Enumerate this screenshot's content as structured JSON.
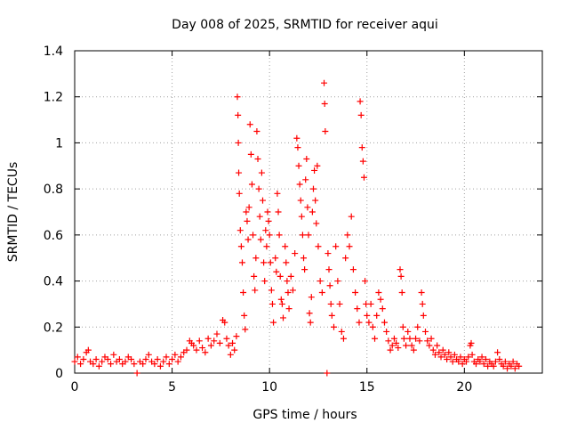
{
  "chart_data": {
    "type": "scatter",
    "title": "Day 008 of 2025, SRMTID for receiver aqui",
    "xlabel": "GPS time / hours",
    "ylabel": "SRMTID / TECUs",
    "xlim": [
      0,
      24
    ],
    "ylim": [
      0,
      1.4
    ],
    "x_ticks": [
      0,
      5,
      10,
      15,
      20
    ],
    "x_tick_labels": [
      "0",
      "5",
      "10",
      "15",
      "20"
    ],
    "y_ticks": [
      0,
      0.2,
      0.4,
      0.6,
      0.8,
      1.0,
      1.2,
      1.4
    ],
    "y_tick_labels": [
      "0",
      "0.2",
      "0.4",
      "0.6",
      "0.8",
      "1",
      "1.2",
      "1.4"
    ],
    "grid": true,
    "marker": "+",
    "colors": {
      "series": "#ff0000",
      "grid": "#a0a0a0",
      "axis": "#000000"
    },
    "series": [
      {
        "name": "SRMTID",
        "points": [
          [
            0.0,
            0.05
          ],
          [
            0.15,
            0.07
          ],
          [
            0.3,
            0.04
          ],
          [
            0.45,
            0.06
          ],
          [
            0.6,
            0.09
          ],
          [
            0.7,
            0.1
          ],
          [
            0.8,
            0.05
          ],
          [
            0.95,
            0.04
          ],
          [
            1.1,
            0.06
          ],
          [
            1.25,
            0.03
          ],
          [
            1.4,
            0.05
          ],
          [
            1.55,
            0.07
          ],
          [
            1.7,
            0.06
          ],
          [
            1.85,
            0.04
          ],
          [
            2.0,
            0.08
          ],
          [
            2.15,
            0.05
          ],
          [
            2.3,
            0.06
          ],
          [
            2.45,
            0.04
          ],
          [
            2.6,
            0.05
          ],
          [
            2.75,
            0.07
          ],
          [
            2.9,
            0.06
          ],
          [
            3.05,
            0.04
          ],
          [
            3.2,
            0.0
          ],
          [
            3.35,
            0.05
          ],
          [
            3.5,
            0.04
          ],
          [
            3.65,
            0.06
          ],
          [
            3.8,
            0.08
          ],
          [
            3.95,
            0.05
          ],
          [
            4.1,
            0.04
          ],
          [
            4.25,
            0.06
          ],
          [
            4.4,
            0.03
          ],
          [
            4.55,
            0.05
          ],
          [
            4.7,
            0.07
          ],
          [
            4.85,
            0.04
          ],
          [
            5.0,
            0.06
          ],
          [
            5.15,
            0.08
          ],
          [
            5.3,
            0.05
          ],
          [
            5.45,
            0.07
          ],
          [
            5.6,
            0.09
          ],
          [
            5.75,
            0.1
          ],
          [
            5.9,
            0.14
          ],
          [
            6.0,
            0.13
          ],
          [
            6.1,
            0.12
          ],
          [
            6.25,
            0.1
          ],
          [
            6.4,
            0.14
          ],
          [
            6.55,
            0.11
          ],
          [
            6.7,
            0.09
          ],
          [
            6.85,
            0.15
          ],
          [
            7.0,
            0.12
          ],
          [
            7.15,
            0.14
          ],
          [
            7.3,
            0.17
          ],
          [
            7.45,
            0.13
          ],
          [
            7.6,
            0.23
          ],
          [
            7.7,
            0.22
          ],
          [
            7.8,
            0.15
          ],
          [
            7.9,
            0.12
          ],
          [
            8.0,
            0.08
          ],
          [
            8.1,
            0.13
          ],
          [
            8.2,
            0.1
          ],
          [
            8.3,
            0.16
          ],
          [
            8.35,
            1.2
          ],
          [
            8.38,
            1.12
          ],
          [
            8.4,
            1.0
          ],
          [
            8.42,
            0.87
          ],
          [
            8.45,
            0.78
          ],
          [
            8.5,
            0.62
          ],
          [
            8.55,
            0.55
          ],
          [
            8.6,
            0.48
          ],
          [
            8.65,
            0.35
          ],
          [
            8.7,
            0.25
          ],
          [
            8.75,
            0.19
          ],
          [
            8.8,
            0.7
          ],
          [
            8.85,
            0.66
          ],
          [
            8.9,
            0.58
          ],
          [
            8.95,
            0.72
          ],
          [
            9.0,
            1.08
          ],
          [
            9.05,
            0.95
          ],
          [
            9.1,
            0.82
          ],
          [
            9.15,
            0.6
          ],
          [
            9.2,
            0.42
          ],
          [
            9.25,
            0.36
          ],
          [
            9.3,
            0.5
          ],
          [
            9.35,
            1.05
          ],
          [
            9.4,
            0.93
          ],
          [
            9.45,
            0.8
          ],
          [
            9.5,
            0.68
          ],
          [
            9.55,
            0.58
          ],
          [
            9.6,
            0.87
          ],
          [
            9.65,
            0.75
          ],
          [
            9.7,
            0.48
          ],
          [
            9.75,
            0.4
          ],
          [
            9.8,
            0.62
          ],
          [
            9.85,
            0.55
          ],
          [
            9.9,
            0.7
          ],
          [
            9.95,
            0.66
          ],
          [
            10.0,
            0.6
          ],
          [
            10.05,
            0.48
          ],
          [
            10.1,
            0.36
          ],
          [
            10.15,
            0.3
          ],
          [
            10.2,
            0.22
          ],
          [
            10.3,
            0.5
          ],
          [
            10.35,
            0.44
          ],
          [
            10.4,
            0.78
          ],
          [
            10.45,
            0.7
          ],
          [
            10.5,
            0.6
          ],
          [
            10.55,
            0.42
          ],
          [
            10.6,
            0.32
          ],
          [
            10.65,
            0.3
          ],
          [
            10.7,
            0.24
          ],
          [
            10.8,
            0.55
          ],
          [
            10.85,
            0.48
          ],
          [
            10.9,
            0.4
          ],
          [
            10.95,
            0.35
          ],
          [
            11.0,
            0.28
          ],
          [
            11.1,
            0.42
          ],
          [
            11.2,
            0.36
          ],
          [
            11.3,
            0.52
          ],
          [
            11.4,
            1.02
          ],
          [
            11.45,
            0.98
          ],
          [
            11.5,
            0.9
          ],
          [
            11.55,
            0.82
          ],
          [
            11.6,
            0.75
          ],
          [
            11.65,
            0.68
          ],
          [
            11.7,
            0.6
          ],
          [
            11.75,
            0.5
          ],
          [
            11.8,
            0.45
          ],
          [
            11.85,
            0.84
          ],
          [
            11.9,
            0.93
          ],
          [
            11.95,
            0.72
          ],
          [
            12.0,
            0.6
          ],
          [
            12.05,
            0.26
          ],
          [
            12.1,
            0.22
          ],
          [
            12.15,
            0.33
          ],
          [
            12.2,
            0.7
          ],
          [
            12.25,
            0.8
          ],
          [
            12.3,
            0.88
          ],
          [
            12.35,
            0.75
          ],
          [
            12.4,
            0.65
          ],
          [
            12.45,
            0.9
          ],
          [
            12.5,
            0.55
          ],
          [
            12.6,
            0.4
          ],
          [
            12.7,
            0.35
          ],
          [
            12.8,
            1.26
          ],
          [
            12.83,
            1.17
          ],
          [
            12.86,
            1.05
          ],
          [
            12.95,
            0.0
          ],
          [
            13.0,
            0.52
          ],
          [
            13.05,
            0.45
          ],
          [
            13.1,
            0.38
          ],
          [
            13.15,
            0.3
          ],
          [
            13.2,
            0.25
          ],
          [
            13.3,
            0.2
          ],
          [
            13.4,
            0.55
          ],
          [
            13.5,
            0.4
          ],
          [
            13.6,
            0.3
          ],
          [
            13.7,
            0.18
          ],
          [
            13.8,
            0.15
          ],
          [
            13.9,
            0.5
          ],
          [
            14.0,
            0.6
          ],
          [
            14.1,
            0.55
          ],
          [
            14.2,
            0.68
          ],
          [
            14.3,
            0.45
          ],
          [
            14.4,
            0.35
          ],
          [
            14.5,
            0.28
          ],
          [
            14.6,
            0.22
          ],
          [
            14.65,
            1.18
          ],
          [
            14.7,
            1.12
          ],
          [
            14.75,
            0.98
          ],
          [
            14.8,
            0.92
          ],
          [
            14.85,
            0.85
          ],
          [
            14.9,
            0.4
          ],
          [
            14.95,
            0.3
          ],
          [
            15.0,
            0.25
          ],
          [
            15.1,
            0.22
          ],
          [
            15.2,
            0.3
          ],
          [
            15.3,
            0.2
          ],
          [
            15.4,
            0.15
          ],
          [
            15.5,
            0.25
          ],
          [
            15.6,
            0.35
          ],
          [
            15.7,
            0.32
          ],
          [
            15.8,
            0.28
          ],
          [
            15.9,
            0.22
          ],
          [
            16.0,
            0.18
          ],
          [
            16.1,
            0.14
          ],
          [
            16.2,
            0.1
          ],
          [
            16.3,
            0.12
          ],
          [
            16.4,
            0.15
          ],
          [
            16.5,
            0.13
          ],
          [
            16.6,
            0.11
          ],
          [
            16.7,
            0.45
          ],
          [
            16.75,
            0.42
          ],
          [
            16.8,
            0.35
          ],
          [
            16.85,
            0.2
          ],
          [
            16.9,
            0.15
          ],
          [
            17.0,
            0.12
          ],
          [
            17.1,
            0.18
          ],
          [
            17.2,
            0.15
          ],
          [
            17.3,
            0.12
          ],
          [
            17.4,
            0.1
          ],
          [
            17.5,
            0.15
          ],
          [
            17.6,
            0.2
          ],
          [
            17.7,
            0.14
          ],
          [
            17.8,
            0.35
          ],
          [
            17.85,
            0.3
          ],
          [
            17.9,
            0.25
          ],
          [
            18.0,
            0.18
          ],
          [
            18.1,
            0.14
          ],
          [
            18.2,
            0.12
          ],
          [
            18.3,
            0.15
          ],
          [
            18.4,
            0.1
          ],
          [
            18.5,
            0.08
          ],
          [
            18.6,
            0.12
          ],
          [
            18.7,
            0.09
          ],
          [
            18.8,
            0.07
          ],
          [
            18.9,
            0.1
          ],
          [
            19.0,
            0.08
          ],
          [
            19.1,
            0.06
          ],
          [
            19.2,
            0.09
          ],
          [
            19.3,
            0.07
          ],
          [
            19.4,
            0.05
          ],
          [
            19.5,
            0.08
          ],
          [
            19.6,
            0.06
          ],
          [
            19.7,
            0.05
          ],
          [
            19.8,
            0.07
          ],
          [
            19.9,
            0.04
          ],
          [
            20.0,
            0.06
          ],
          [
            20.1,
            0.05
          ],
          [
            20.2,
            0.07
          ],
          [
            20.3,
            0.12
          ],
          [
            20.35,
            0.13
          ],
          [
            20.4,
            0.08
          ],
          [
            20.5,
            0.05
          ],
          [
            20.6,
            0.04
          ],
          [
            20.7,
            0.06
          ],
          [
            20.8,
            0.05
          ],
          [
            20.9,
            0.07
          ],
          [
            21.0,
            0.04
          ],
          [
            21.1,
            0.06
          ],
          [
            21.2,
            0.03
          ],
          [
            21.3,
            0.05
          ],
          [
            21.4,
            0.04
          ],
          [
            21.5,
            0.03
          ],
          [
            21.6,
            0.05
          ],
          [
            21.7,
            0.09
          ],
          [
            21.8,
            0.06
          ],
          [
            21.9,
            0.04
          ],
          [
            22.0,
            0.03
          ],
          [
            22.1,
            0.05
          ],
          [
            22.2,
            0.02
          ],
          [
            22.3,
            0.04
          ],
          [
            22.4,
            0.03
          ],
          [
            22.5,
            0.05
          ],
          [
            22.6,
            0.02
          ],
          [
            22.7,
            0.04
          ],
          [
            22.8,
            0.03
          ]
        ]
      }
    ]
  }
}
